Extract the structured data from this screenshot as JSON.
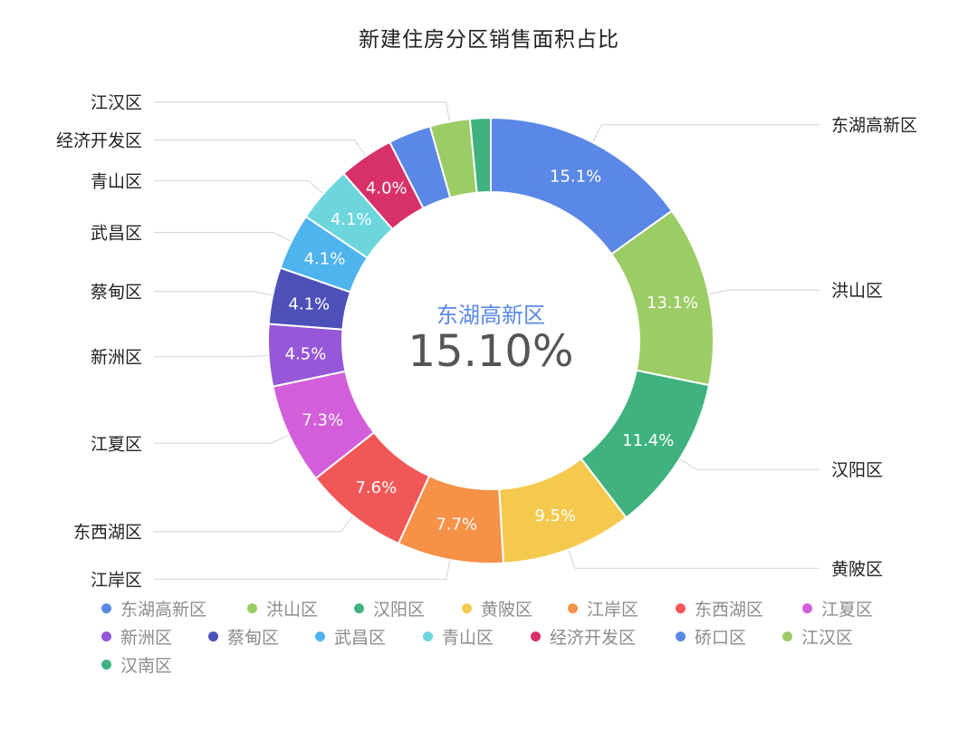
{
  "chart_data": {
    "type": "pie",
    "title": "新建住房分区销售面积占比",
    "center": {
      "label": "东湖高新区",
      "value": "15.10%"
    },
    "slices": [
      {
        "name": "东湖高新区",
        "value": 15.1,
        "label": "15.1%",
        "color": "#5b88e6"
      },
      {
        "name": "洪山区",
        "value": 13.1,
        "label": "13.1%",
        "color": "#9ccc65"
      },
      {
        "name": "汉阳区",
        "value": 11.4,
        "label": "11.4%",
        "color": "#3fb27f"
      },
      {
        "name": "黄陂区",
        "value": 9.5,
        "label": "9.5%",
        "color": "#f4c94e"
      },
      {
        "name": "江岸区",
        "value": 7.7,
        "label": "7.7%",
        "color": "#f69148"
      },
      {
        "name": "东西湖区",
        "value": 7.6,
        "label": "7.6%",
        "color": "#f25757"
      },
      {
        "name": "江夏区",
        "value": 7.3,
        "label": "7.3%",
        "color": "#d25fd9"
      },
      {
        "name": "新洲区",
        "value": 4.5,
        "label": "4.5%",
        "color": "#9657d9"
      },
      {
        "name": "蔡甸区",
        "value": 4.1,
        "label": "4.1%",
        "color": "#4d50b8"
      },
      {
        "name": "武昌区",
        "value": 4.1,
        "label": "4.1%",
        "color": "#4fb3ee"
      },
      {
        "name": "青山区",
        "value": 4.1,
        "label": "4.1%",
        "color": "#6dd6dd"
      },
      {
        "name": "经济开发区",
        "value": 4.0,
        "label": "4.0%",
        "color": "#d7306b"
      },
      {
        "name": "硚口区",
        "value": 3.1,
        "label": "",
        "color": "#5b88e6"
      },
      {
        "name": "江汉区",
        "value": 2.9,
        "label": "",
        "color": "#9ccc65"
      },
      {
        "name": "汉南区",
        "value": 1.5,
        "label": "",
        "color": "#3fb27f"
      }
    ],
    "callouts": [
      "东湖高新区",
      "洪山区",
      "汉阳区",
      "黄陂区",
      "江岸区",
      "东西湖区",
      "江夏区",
      "新洲区",
      "蔡甸区",
      "武昌区",
      "青山区",
      "经济开发区",
      "江汉区"
    ],
    "legend_position": "bottom"
  }
}
